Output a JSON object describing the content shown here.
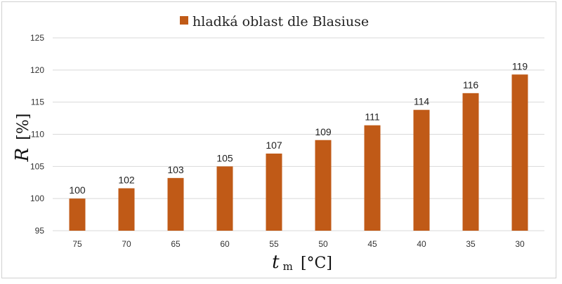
{
  "chart_data": {
    "type": "bar",
    "categories": [
      "75",
      "70",
      "65",
      "60",
      "55",
      "50",
      "45",
      "40",
      "35",
      "30"
    ],
    "series": [
      {
        "name": "hladká oblast dle Blasiuse",
        "values": [
          100,
          101.6,
          103.2,
          105.0,
          107.0,
          109.1,
          111.4,
          113.8,
          116.4,
          119.3
        ],
        "data_labels": [
          "100",
          "102",
          "103",
          "105",
          "107",
          "109",
          "111",
          "114",
          "116",
          "119"
        ]
      }
    ],
    "title": "",
    "xlabel": {
      "main": "t",
      "sub": "m",
      "unit": "[°C]"
    },
    "ylabel": {
      "main": "R",
      "unit": "[%]"
    },
    "ylim": [
      95,
      125
    ],
    "yticks": [
      "95",
      "100",
      "105",
      "110",
      "115",
      "120",
      "125"
    ],
    "grid": true,
    "legend_position": "top-center",
    "colors": {
      "bar": "#c05a17",
      "grid": "#d9d9d9"
    }
  }
}
